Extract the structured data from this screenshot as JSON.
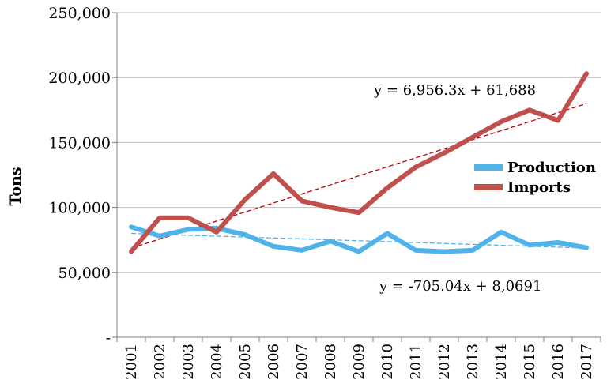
{
  "chart_data": {
    "type": "line",
    "title": "",
    "xlabel": "",
    "ylabel": "Tons",
    "ylim": [
      0,
      250000
    ],
    "y_ticks": [
      "-",
      "50,000",
      "100,000",
      "150,000",
      "200,000",
      "250,000"
    ],
    "y_tick_values": [
      0,
      50000,
      100000,
      150000,
      200000,
      250000
    ],
    "categories": [
      "2001",
      "2002",
      "2003",
      "2004",
      "2005",
      "2006",
      "2007",
      "2008",
      "2009",
      "2010",
      "2011",
      "2012",
      "2013",
      "2014",
      "2015",
      "2016",
      "2017"
    ],
    "series": [
      {
        "name": "Production",
        "color": "#4fb3ea",
        "values": [
          85000,
          78000,
          83000,
          84000,
          79000,
          70000,
          67000,
          74000,
          66000,
          80000,
          67000,
          66000,
          67000,
          81000,
          71000,
          73000,
          69000
        ],
        "trendline": {
          "equation": "y = -705.04x + 8,0691",
          "slope": -705.04,
          "intercept": 80691,
          "color": "#4fb3ea"
        }
      },
      {
        "name": "Imports",
        "color": "#c0504d",
        "values": [
          66000,
          92000,
          92000,
          81000,
          106000,
          126000,
          105000,
          100000,
          96000,
          115000,
          131000,
          142000,
          154000,
          166000,
          175000,
          167000,
          203000
        ],
        "trendline": {
          "equation": "y = 6,956.3x + 61,688",
          "slope": 6956.3,
          "intercept": 61688,
          "color": "#c0000b"
        }
      }
    ],
    "legend_position": "right",
    "grid": "horizontal"
  }
}
